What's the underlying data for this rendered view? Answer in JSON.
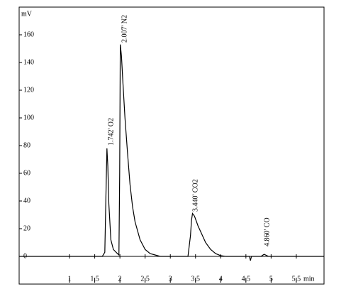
{
  "chart_data": {
    "type": "line",
    "y_label": "mV",
    "x_label": "min",
    "xlim": [
      0,
      6.05
    ],
    "ylim": [
      -20,
      180
    ],
    "xticks": [
      1,
      {
        "value": 1.5,
        "label": "1,5"
      },
      2,
      {
        "value": 2.5,
        "label": "2,5"
      },
      3,
      {
        "value": 3.5,
        "label": "3,5"
      },
      4,
      {
        "value": 4.5,
        "label": "4,5"
      },
      5,
      {
        "value": 5.5,
        "label": "5,5"
      }
    ],
    "yticks": [
      0,
      20,
      40,
      60,
      80,
      100,
      120,
      140,
      160
    ],
    "series": [
      {
        "name": null,
        "color": "#000000",
        "x": [
          0,
          1.65,
          1.7,
          1.72,
          1.742,
          1.76,
          1.78,
          1.82,
          1.87,
          1.95,
          1.98,
          1.995,
          2.007,
          2.03,
          2.06,
          2.1,
          2.15,
          2.2,
          2.25,
          2.3,
          2.4,
          2.5,
          2.6,
          2.8,
          3.35,
          3.4,
          3.42,
          3.44,
          3.48,
          3.55,
          3.6,
          3.7,
          3.8,
          3.9,
          4.0,
          4.1,
          4.57,
          4.59,
          4.61,
          4.8,
          4.86,
          4.95,
          6.05
        ],
        "values": [
          0,
          0,
          3,
          40,
          78,
          65,
          38,
          12,
          5,
          2,
          1,
          60,
          153,
          145,
          125,
          100,
          75,
          52,
          36,
          25,
          12,
          5,
          2,
          0,
          0,
          15,
          26,
          31,
          29,
          22,
          18,
          10,
          5,
          2,
          0.5,
          0,
          0,
          -3,
          0,
          0,
          1.5,
          0,
          0
        ]
      }
    ],
    "annotations": [
      "1.742' O2",
      "2.007' N2",
      "3.440' CO2",
      "4.860' CO"
    ]
  }
}
